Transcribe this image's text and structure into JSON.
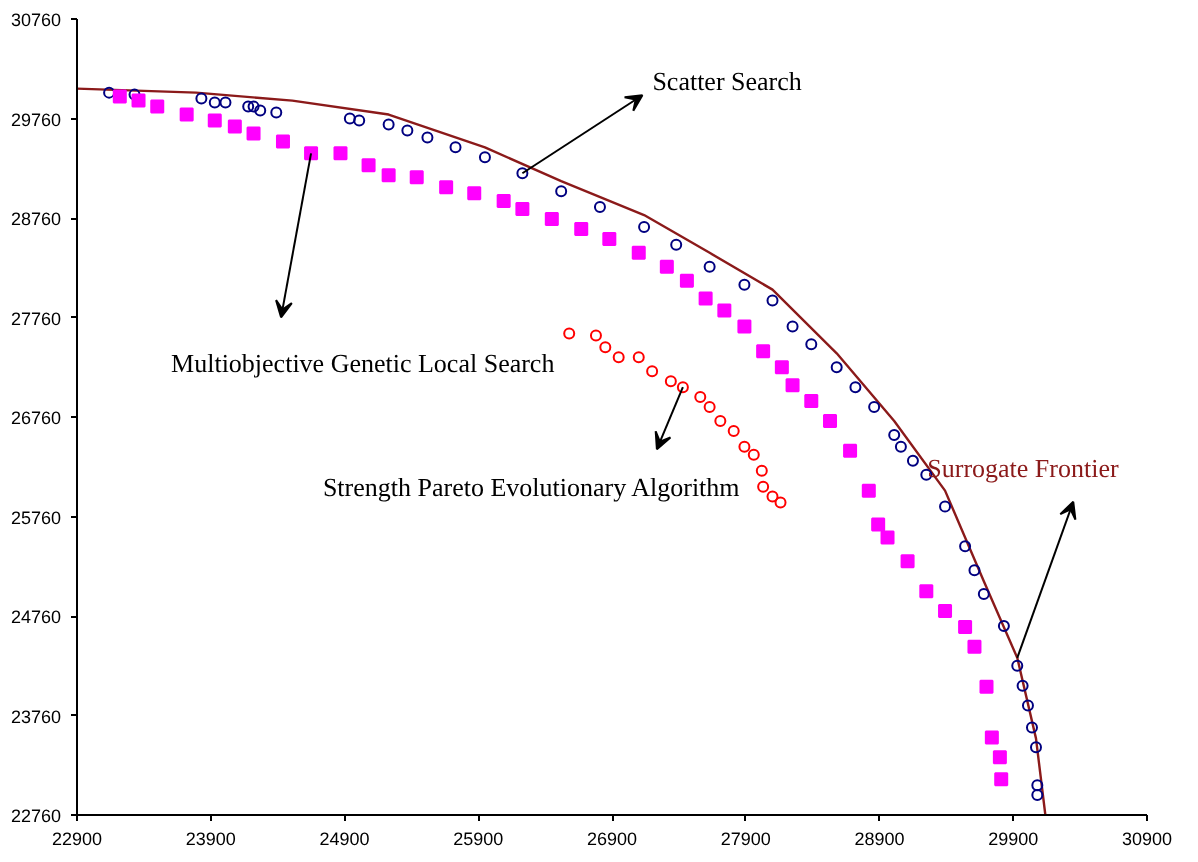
{
  "chart_data": {
    "type": "scatter",
    "xlim": [
      22900,
      30900
    ],
    "ylim": [
      22760,
      30760
    ],
    "xticks": [
      22900,
      23900,
      24900,
      25900,
      26900,
      27900,
      28900,
      29900,
      30900
    ],
    "yticks": [
      22760,
      23760,
      24760,
      25760,
      26760,
      27760,
      28760,
      29760,
      30760
    ],
    "grid": false,
    "series": [
      {
        "name": "Surrogate Frontier",
        "type": "line",
        "marker": "none",
        "color": "#8b1a1a",
        "x": [
          22900,
          23790,
          24510,
          25230,
          25950,
          26520,
          27140,
          27630,
          28100,
          28580,
          29010,
          29390,
          29680,
          29930,
          30070,
          30140
        ],
        "values": [
          30060,
          30020,
          29940,
          29800,
          29470,
          29130,
          28790,
          28410,
          28040,
          27400,
          26720,
          26020,
          25110,
          24340,
          23530,
          22760
        ]
      },
      {
        "name": "Scatter Search",
        "marker": "circle",
        "color": "#000080",
        "x": [
          23140,
          23190,
          23330,
          23830,
          23930,
          24010,
          24180,
          24220,
          24270,
          24390,
          24940,
          25010,
          25230,
          25370,
          25520,
          25730,
          25950,
          26230,
          26520,
          26810,
          27140,
          27380,
          27630,
          27890,
          28100,
          28250,
          28390,
          28580,
          28720,
          28860,
          29010,
          29060,
          29150,
          29250,
          29390,
          29540,
          29610,
          29680,
          29830,
          29930,
          29970,
          30010,
          30040,
          30070,
          30080,
          30080
        ],
        "values": [
          30020,
          null,
          30000,
          29960,
          29920,
          29920,
          29880,
          29880,
          29840,
          29820,
          29760,
          29740,
          29700,
          29640,
          29570,
          29470,
          29370,
          29210,
          29030,
          28870,
          28670,
          28490,
          28270,
          28090,
          27930,
          27670,
          27490,
          27260,
          27060,
          26860,
          26580,
          26460,
          26320,
          26180,
          25860,
          25460,
          25220,
          24980,
          24660,
          24260,
          24060,
          23860,
          23640,
          23440,
          23060,
          22960
        ]
      },
      {
        "name": "Multiobjective Genetic Local Search",
        "marker": "square",
        "color": "#ff00ff",
        "x": [
          23220,
          23360,
          23500,
          23720,
          23930,
          24080,
          24220,
          24440,
          24650,
          24870,
          25080,
          25230,
          25440,
          25660,
          25870,
          26090,
          26230,
          26450,
          26670,
          26880,
          27100,
          27310,
          27460,
          27600,
          27740,
          27890,
          28030,
          28170,
          28250,
          28390,
          28530,
          28680,
          28820,
          28890,
          28960,
          29110,
          29250,
          29390,
          29540,
          29610,
          29700,
          29740,
          29800,
          29810
        ],
        "values": [
          29980,
          29940,
          29880,
          29800,
          29740,
          29680,
          29610,
          29530,
          29410,
          29410,
          29290,
          29190,
          29170,
          29070,
          29010,
          28930,
          28850,
          28750,
          28650,
          28550,
          28410,
          28270,
          28130,
          27950,
          27830,
          27670,
          27420,
          27260,
          27080,
          26920,
          26720,
          26420,
          26020,
          25680,
          25550,
          25310,
          25010,
          24810,
          24650,
          24450,
          24050,
          23540,
          23340,
          23120
        ]
      },
      {
        "name": "Strength Pareto Evolutionary  Algorithm",
        "marker": "circle",
        "color": "#ff0000",
        "x": [
          26580,
          26780,
          26850,
          26950,
          27100,
          27200,
          27340,
          27430,
          27560,
          27630,
          27710,
          27810,
          27890,
          27960,
          28020,
          28030,
          28100,
          28160
        ],
        "values": [
          27600,
          27580,
          27460,
          27360,
          27360,
          27220,
          27120,
          27060,
          26960,
          26860,
          26720,
          26620,
          26460,
          26380,
          26220,
          26060,
          25960,
          25900
        ]
      }
    ]
  }
}
